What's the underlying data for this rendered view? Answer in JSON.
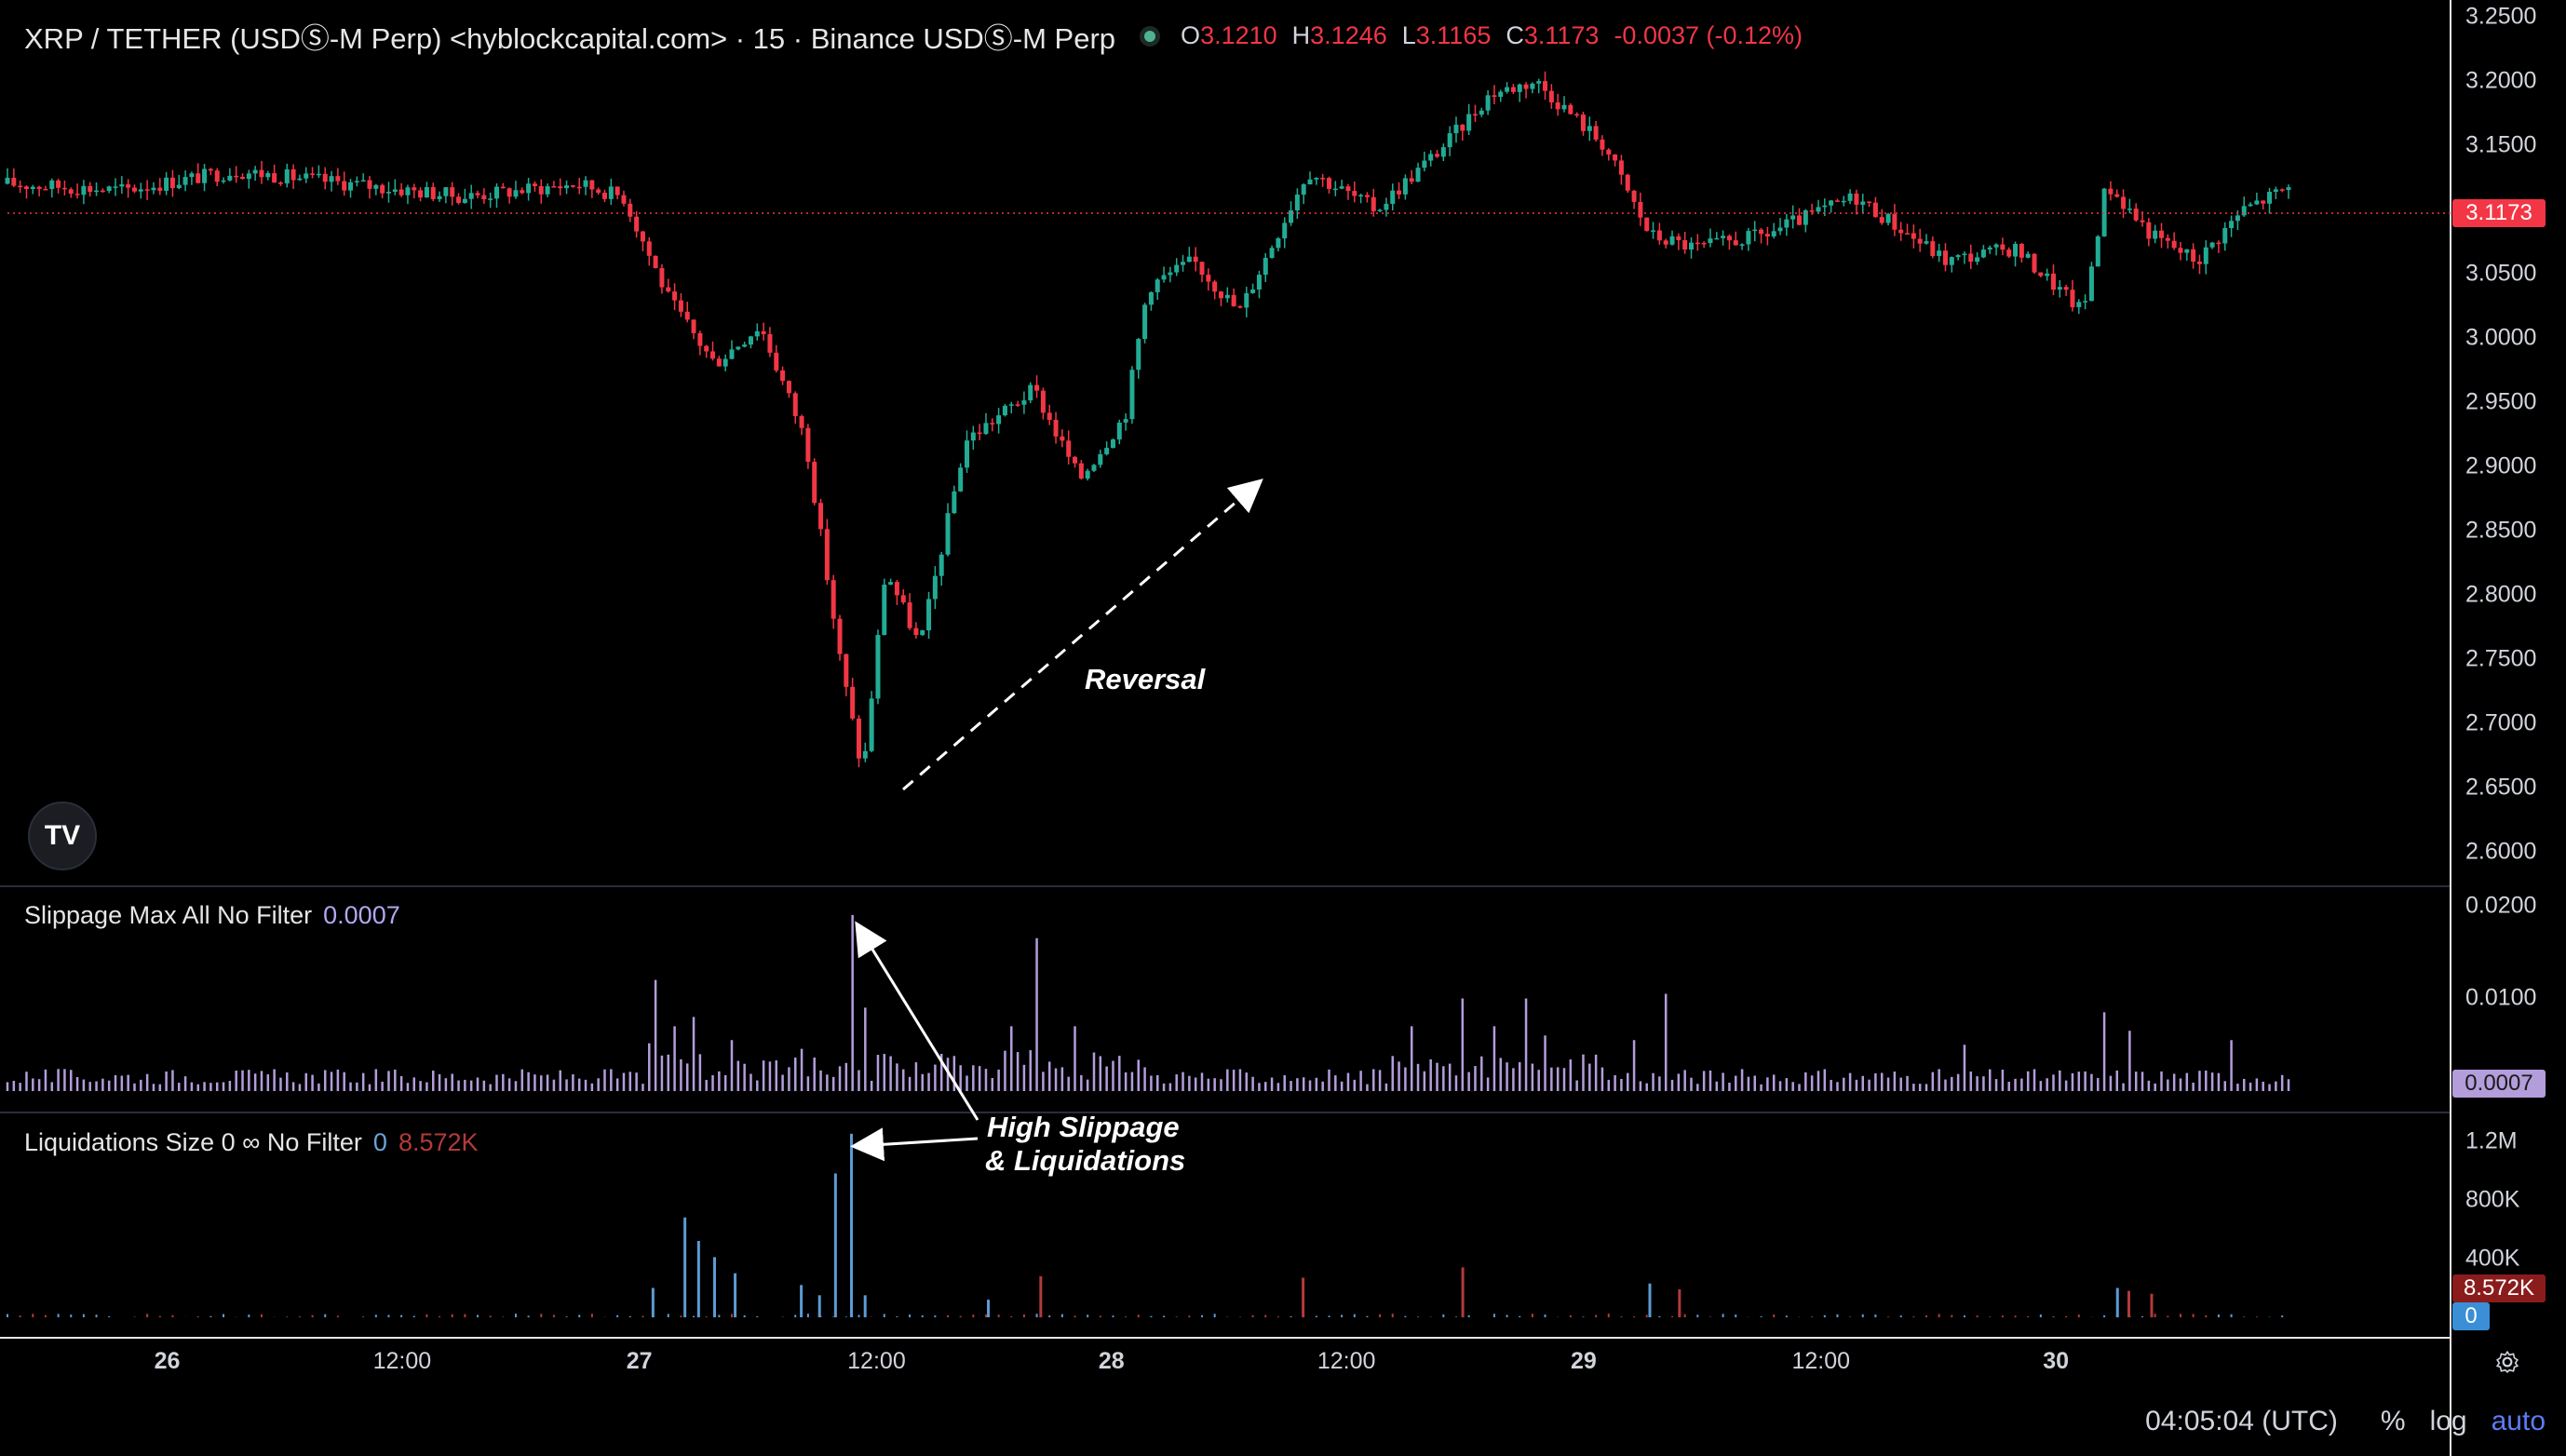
{
  "header": {
    "symbol": "XRP / TETHER (USDⓈ-M Perp) <hyblockcapital.com> · 15 · Binance USDⓈ-M Perp",
    "ohlc": [
      {
        "k": "O",
        "v": "3.1210"
      },
      {
        "k": "H",
        "v": "3.1246"
      },
      {
        "k": "L",
        "v": "3.1165"
      },
      {
        "k": "C",
        "v": "3.1173"
      }
    ],
    "change": "-0.0037 (-0.12%)"
  },
  "panes": {
    "slippage": {
      "title": "Slippage Max All No Filter",
      "value": "0.0007",
      "tag": "0.0007"
    },
    "liquidations": {
      "title": "Liquidations Size 0 ∞ No Filter",
      "value_a": "0",
      "value_b": "8.572K",
      "tag_long": "8.572K",
      "tag_short": "0"
    }
  },
  "price_tag": "3.1173",
  "annotations": {
    "reversal": "Reversal",
    "slippage_line1": "High Slippage",
    "slippage_line2": "& Liquidations"
  },
  "bottom": {
    "time": "04:05:04 (UTC)",
    "percent": "%",
    "log": "log",
    "auto": "auto"
  },
  "colors": {
    "up": "#22ab94",
    "down": "#f23645",
    "slippage": "#b39ddb",
    "liq_long": "#5b9bd5",
    "liq_short": "#b33a3a",
    "bg": "#000000"
  },
  "chart_data": [
    {
      "type": "candlestick",
      "title": "XRP / TETHER (USDⓈ-M Perp)",
      "interval": "15",
      "y_axis_ticks": [
        "3.2500",
        "3.2000",
        "3.1500",
        "3.1000",
        "3.0500",
        "3.0000",
        "2.9500",
        "2.9000",
        "2.8500",
        "2.8000",
        "2.7500",
        "2.7000",
        "2.6500",
        "2.6000"
      ],
      "ylim": [
        2.6,
        3.25
      ],
      "x_axis_ticks": [
        "26",
        "12:00",
        "27",
        "12:00",
        "28",
        "12:00",
        "29",
        "12:00",
        "30"
      ],
      "x_day_labels": [
        "26",
        "27",
        "28",
        "29",
        "30"
      ],
      "approx_path": [
        {
          "x": 0.0,
          "y": 3.12
        },
        {
          "x": 0.05,
          "y": 3.115
        },
        {
          "x": 0.1,
          "y": 3.13
        },
        {
          "x": 0.15,
          "y": 3.12
        },
        {
          "x": 0.2,
          "y": 3.11
        },
        {
          "x": 0.25,
          "y": 3.12
        },
        {
          "x": 0.27,
          "y": 3.11
        },
        {
          "x": 0.29,
          "y": 3.03
        },
        {
          "x": 0.31,
          "y": 2.98
        },
        {
          "x": 0.33,
          "y": 3.01
        },
        {
          "x": 0.35,
          "y": 2.92
        },
        {
          "x": 0.365,
          "y": 2.75
        },
        {
          "x": 0.375,
          "y": 2.66
        },
        {
          "x": 0.385,
          "y": 2.82
        },
        {
          "x": 0.4,
          "y": 2.76
        },
        {
          "x": 0.42,
          "y": 2.92
        },
        {
          "x": 0.45,
          "y": 2.96
        },
        {
          "x": 0.47,
          "y": 2.89
        },
        {
          "x": 0.49,
          "y": 2.94
        },
        {
          "x": 0.5,
          "y": 3.04
        },
        {
          "x": 0.52,
          "y": 3.06
        },
        {
          "x": 0.54,
          "y": 3.02
        },
        {
          "x": 0.57,
          "y": 3.13
        },
        {
          "x": 0.6,
          "y": 3.1
        },
        {
          "x": 0.63,
          "y": 3.15
        },
        {
          "x": 0.65,
          "y": 3.19
        },
        {
          "x": 0.67,
          "y": 3.2
        },
        {
          "x": 0.7,
          "y": 3.15
        },
        {
          "x": 0.72,
          "y": 3.08
        },
        {
          "x": 0.74,
          "y": 3.07
        },
        {
          "x": 0.77,
          "y": 3.08
        },
        {
          "x": 0.81,
          "y": 3.11
        },
        {
          "x": 0.85,
          "y": 3.06
        },
        {
          "x": 0.88,
          "y": 3.07
        },
        {
          "x": 0.91,
          "y": 3.02
        },
        {
          "x": 0.92,
          "y": 3.12
        },
        {
          "x": 0.94,
          "y": 3.08
        },
        {
          "x": 0.96,
          "y": 3.06
        },
        {
          "x": 0.98,
          "y": 3.1
        },
        {
          "x": 1.0,
          "y": 3.117
        }
      ]
    },
    {
      "type": "bar",
      "title": "Slippage Max All No Filter",
      "y_axis_ticks": [
        "0.0200",
        "0.0100"
      ],
      "ylim": [
        0,
        0.021
      ],
      "baseline": 0.0012,
      "spikes": [
        {
          "x": 0.285,
          "y": 0.012
        },
        {
          "x": 0.293,
          "y": 0.007
        },
        {
          "x": 0.302,
          "y": 0.008
        },
        {
          "x": 0.317,
          "y": 0.0055
        },
        {
          "x": 0.37,
          "y": 0.019
        },
        {
          "x": 0.375,
          "y": 0.009
        },
        {
          "x": 0.452,
          "y": 0.0165
        },
        {
          "x": 0.44,
          "y": 0.007
        },
        {
          "x": 0.468,
          "y": 0.007
        },
        {
          "x": 0.615,
          "y": 0.007
        },
        {
          "x": 0.638,
          "y": 0.01
        },
        {
          "x": 0.652,
          "y": 0.007
        },
        {
          "x": 0.666,
          "y": 0.01
        },
        {
          "x": 0.675,
          "y": 0.006
        },
        {
          "x": 0.713,
          "y": 0.0055
        },
        {
          "x": 0.728,
          "y": 0.0105
        },
        {
          "x": 0.859,
          "y": 0.005
        },
        {
          "x": 0.92,
          "y": 0.0085
        },
        {
          "x": 0.93,
          "y": 0.0065
        },
        {
          "x": 0.976,
          "y": 0.0055
        }
      ]
    },
    {
      "type": "bar",
      "title": "Liquidations Size 0 ∞ No Filter",
      "y_axis_ticks": [
        "1.2M",
        "800K",
        "400K"
      ],
      "ylim": [
        0,
        1300000
      ],
      "series": [
        {
          "name": "long",
          "values": [
            {
              "x": 0.283,
              "y": 200000
            },
            {
              "x": 0.297,
              "y": 680000
            },
            {
              "x": 0.303,
              "y": 520000
            },
            {
              "x": 0.31,
              "y": 410000
            },
            {
              "x": 0.319,
              "y": 300000
            },
            {
              "x": 0.348,
              "y": 220000
            },
            {
              "x": 0.356,
              "y": 150000
            },
            {
              "x": 0.363,
              "y": 980000
            },
            {
              "x": 0.37,
              "y": 1250000
            },
            {
              "x": 0.376,
              "y": 150000
            },
            {
              "x": 0.43,
              "y": 120000
            },
            {
              "x": 0.72,
              "y": 230000
            },
            {
              "x": 0.925,
              "y": 200000
            }
          ]
        },
        {
          "name": "short",
          "values": [
            {
              "x": 0.453,
              "y": 280000
            },
            {
              "x": 0.568,
              "y": 270000
            },
            {
              "x": 0.638,
              "y": 340000
            },
            {
              "x": 0.733,
              "y": 190000
            },
            {
              "x": 0.93,
              "y": 180000
            },
            {
              "x": 0.94,
              "y": 160000
            }
          ]
        }
      ]
    }
  ]
}
